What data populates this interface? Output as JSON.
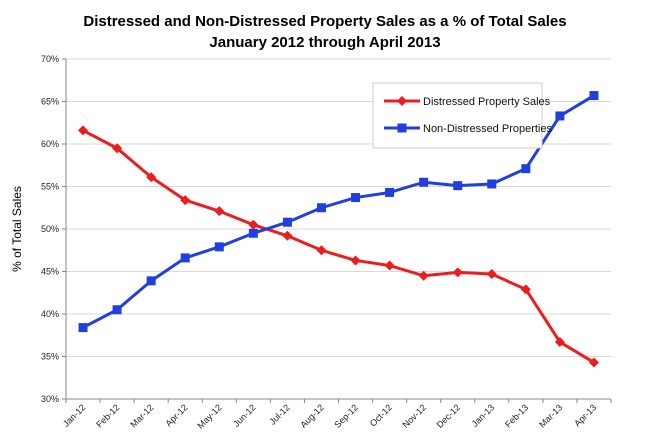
{
  "chart_data": {
    "type": "line",
    "title": "Distressed and Non-Distressed Property Sales as a % of Total Sales",
    "subtitle": "January 2012 through April 2013",
    "xlabel": "",
    "ylabel": "% of Total Sales",
    "ylim": [
      30,
      70
    ],
    "ytick_step": 5,
    "ytick_labels": [
      "30%",
      "35%",
      "40%",
      "45%",
      "50%",
      "55%",
      "60%",
      "65%",
      "70%"
    ],
    "grid": true,
    "legend_position": "top-right",
    "categories": [
      "Jan-12",
      "Feb-12",
      "Mar-12",
      "Apr-12",
      "May-12",
      "Jun-12",
      "Jul-12",
      "Aug-12",
      "Sep-12",
      "Oct-12",
      "Nov-12",
      "Dec-12",
      "Jan-13",
      "Feb-13",
      "Mar-13",
      "Apr-13"
    ],
    "series": [
      {
        "name": "Distressed Property Sales",
        "color": "#ee1c1c",
        "marker": "diamond",
        "values": [
          61.6,
          59.5,
          56.1,
          53.4,
          52.1,
          50.5,
          49.2,
          47.5,
          46.3,
          45.7,
          44.5,
          44.9,
          44.7,
          42.9,
          36.7,
          34.3
        ]
      },
      {
        "name": "Non-Distressed Properties",
        "color": "#1f3fe0",
        "marker": "square",
        "values": [
          38.4,
          40.5,
          43.9,
          46.6,
          47.9,
          49.5,
          50.8,
          52.5,
          53.7,
          54.3,
          55.5,
          55.1,
          55.3,
          57.1,
          63.3,
          65.7
        ]
      }
    ]
  }
}
